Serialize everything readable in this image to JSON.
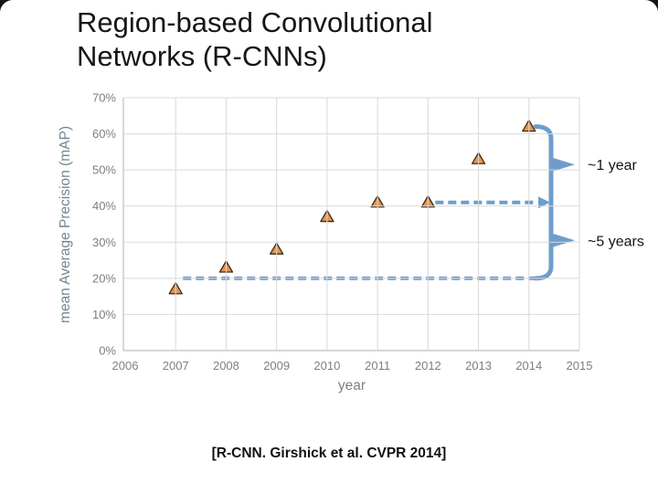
{
  "slide": {
    "title_line1": "Region-based Convolutional",
    "title_line2": "Networks (R-CNNs)",
    "caption": "[R-CNN. Girshick et al. CVPR 2014]"
  },
  "chart_data": {
    "type": "scatter",
    "title": "",
    "xlabel": "year",
    "ylabel": "mean Average Precision (mAP)",
    "x": [
      2007,
      2008,
      2009,
      2010,
      2011,
      2012,
      2013,
      2014
    ],
    "y": [
      17,
      23,
      28,
      37,
      41,
      41,
      53,
      62
    ],
    "xlim": [
      2006,
      2015
    ],
    "ylim": [
      0,
      70
    ],
    "x_ticks": [
      "2006",
      "2007",
      "2008",
      "2009",
      "2010",
      "2011",
      "2012",
      "2013",
      "2014",
      "2015"
    ],
    "y_ticks": [
      "0%",
      "10%",
      "20%",
      "30%",
      "40%",
      "50%",
      "60%",
      "70%"
    ],
    "grid": true,
    "legend": "none",
    "marker": "triangle",
    "colors": {
      "marker_fill": "#e8954e",
      "marker_stroke": "#3a2a18",
      "accent_blue": "#6f9dcb",
      "gridline": "#d9d9d9",
      "axis_line": "#bfbfbf",
      "tick_text": "#7f7f7f",
      "y_title_text": "#72858f"
    },
    "dashed_guides": [
      {
        "y": 41,
        "from_year": 2012
      },
      {
        "y": 20,
        "from_year": 2007
      }
    ],
    "annotations": [
      {
        "label": "~1 year",
        "y_from": 62,
        "y_to": 41
      },
      {
        "label": "~5 years",
        "y_from": 41,
        "y_to": 20
      }
    ]
  }
}
